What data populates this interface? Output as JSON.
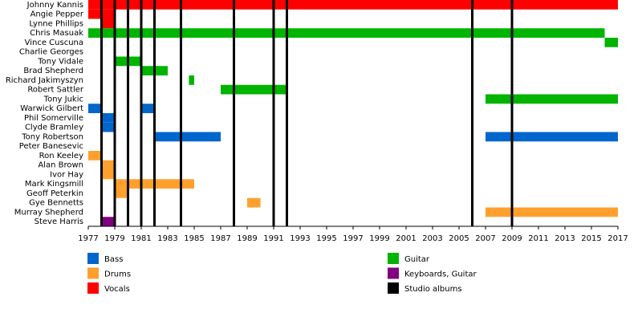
{
  "chart_data": {
    "type": "timeline",
    "xlim": [
      1977,
      2017
    ],
    "xticks": [
      1977,
      1979,
      1981,
      1983,
      1985,
      1987,
      1989,
      1991,
      1993,
      1995,
      1997,
      1999,
      2001,
      2003,
      2005,
      2007,
      2009,
      2011,
      2013,
      2015,
      2017
    ],
    "series": [
      {
        "name": "Bass",
        "color": "#0066cc"
      },
      {
        "name": "Drums",
        "color": "#ffa02e"
      },
      {
        "name": "Vocals",
        "color": "#ff0000"
      },
      {
        "name": "Guitar",
        "color": "#00b400"
      },
      {
        "name": "Keyboards, Guitar",
        "color": "#800080"
      }
    ],
    "albums": {
      "name": "Studio albums",
      "color": "#000000",
      "x": [
        1978,
        1979,
        1980,
        1981,
        1982,
        1984,
        1988,
        1991,
        1992,
        2006,
        2009
      ]
    },
    "members": [
      {
        "name": "Johnny Kannis",
        "periods": [
          {
            "role": 2,
            "start": 1977,
            "end": 2017
          }
        ]
      },
      {
        "name": "Angie Pepper",
        "periods": [
          {
            "role": 2,
            "start": 1977,
            "end": 1979
          }
        ]
      },
      {
        "name": "Lynne Phillips",
        "periods": [
          {
            "role": 2,
            "start": 1978,
            "end": 1979
          }
        ]
      },
      {
        "name": "Chris Masuak",
        "periods": [
          {
            "role": 3,
            "start": 1977,
            "end": 2016
          }
        ]
      },
      {
        "name": "Vince Cuscuna",
        "periods": [
          {
            "role": 3,
            "start": 2016,
            "end": 2017
          }
        ]
      },
      {
        "name": "Charlie Georges",
        "periods": []
      },
      {
        "name": "Tony Vidale",
        "periods": [
          {
            "role": 3,
            "start": 1979,
            "end": 1981
          }
        ]
      },
      {
        "name": "Brad Shepherd",
        "periods": [
          {
            "role": 3,
            "start": 1981,
            "end": 1983
          }
        ]
      },
      {
        "name": "Richard Jakimyszyn",
        "periods": [
          {
            "role": 3,
            "start": 1984.6,
            "end": 1985
          }
        ]
      },
      {
        "name": "Robert Sattler",
        "periods": [
          {
            "role": 3,
            "start": 1987,
            "end": 1992
          }
        ]
      },
      {
        "name": "Tony Jukic",
        "periods": [
          {
            "role": 3,
            "start": 2007,
            "end": 2017
          }
        ]
      },
      {
        "name": "Warwick Gilbert",
        "periods": [
          {
            "role": 0,
            "start": 1977,
            "end": 1978
          },
          {
            "role": 0,
            "start": 1981,
            "end": 1982
          }
        ]
      },
      {
        "name": "Phil Somerville",
        "periods": [
          {
            "role": 0,
            "start": 1978,
            "end": 1979
          }
        ]
      },
      {
        "name": "Clyde Bramley",
        "periods": [
          {
            "role": 0,
            "start": 1978,
            "end": 1979
          }
        ]
      },
      {
        "name": "Tony Robertson",
        "periods": [
          {
            "role": 0,
            "start": 1982,
            "end": 1987
          },
          {
            "role": 0,
            "start": 2007,
            "end": 2017
          }
        ]
      },
      {
        "name": "Peter Banesevic",
        "periods": []
      },
      {
        "name": "Ron Keeley",
        "periods": [
          {
            "role": 1,
            "start": 1977,
            "end": 1978
          }
        ]
      },
      {
        "name": "Alan Brown",
        "periods": [
          {
            "role": 1,
            "start": 1978,
            "end": 1979
          }
        ]
      },
      {
        "name": "Ivor Hay",
        "periods": [
          {
            "role": 1,
            "start": 1978,
            "end": 1979
          }
        ]
      },
      {
        "name": "Mark Kingsmill",
        "periods": [
          {
            "role": 1,
            "start": 1979,
            "end": 1985
          }
        ]
      },
      {
        "name": "Geoff Peterkin",
        "periods": [
          {
            "role": 1,
            "start": 1979,
            "end": 1980
          }
        ]
      },
      {
        "name": "Gye Bennetts",
        "periods": [
          {
            "role": 1,
            "start": 1989,
            "end": 1990
          }
        ]
      },
      {
        "name": "Murray Shepherd",
        "periods": [
          {
            "role": 1,
            "start": 2007,
            "end": 2017
          }
        ]
      },
      {
        "name": "Steve Harris",
        "periods": [
          {
            "role": 4,
            "start": 1978,
            "end": 1979
          }
        ]
      }
    ]
  }
}
